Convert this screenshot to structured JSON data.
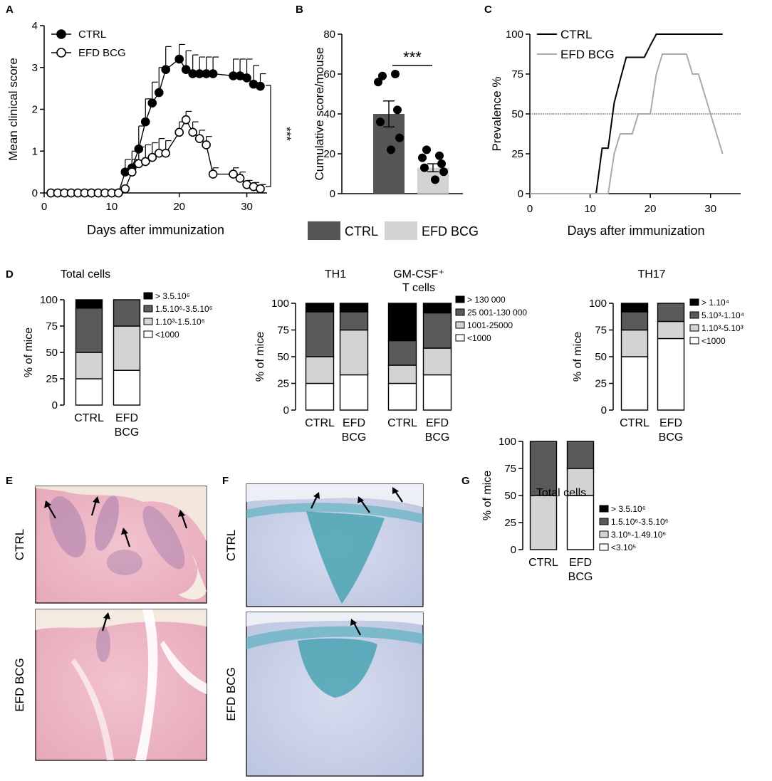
{
  "colors": {
    "dark": "#555555",
    "light": "#d3d3d3",
    "white": "#ffffff",
    "black": "#000000",
    "line_light": "#aaaaaa"
  },
  "panel_letters": [
    "A",
    "B",
    "C",
    "D",
    "E",
    "F",
    "G"
  ],
  "chart_data": [
    {
      "panel": "A",
      "type": "line",
      "xlabel": "Days after immunization",
      "ylabel": "Mean clinical score",
      "xlim": [
        0,
        33
      ],
      "ylim": [
        0,
        4
      ],
      "xticks": [
        "0",
        "10",
        "20",
        "30"
      ],
      "yticks": [
        "0",
        "1",
        "2",
        "3",
        "4"
      ],
      "legend_position": "top-left",
      "significance": "***",
      "series": [
        {
          "name": "CTRL",
          "marker": "filled-circle",
          "x": [
            1,
            2,
            3,
            4,
            5,
            6,
            7,
            8,
            9,
            10,
            11,
            12,
            13,
            14,
            15,
            16,
            17,
            18,
            20,
            21,
            22,
            23,
            24,
            25,
            28,
            29,
            30,
            31,
            32
          ],
          "y": [
            0,
            0,
            0,
            0,
            0,
            0,
            0,
            0,
            0,
            0,
            0,
            0.5,
            0.6,
            1.05,
            1.7,
            2.15,
            2.4,
            2.95,
            3.2,
            2.95,
            2.85,
            2.85,
            2.85,
            2.85,
            2.8,
            2.8,
            2.75,
            2.6,
            2.55
          ],
          "err": [
            0,
            0,
            0,
            0,
            0,
            0,
            0,
            0,
            0,
            0,
            0,
            0.3,
            0.4,
            0.55,
            0.55,
            0.5,
            0.6,
            0.55,
            0.35,
            0.45,
            0.45,
            0.4,
            0.4,
            0.4,
            0.4,
            0.4,
            0.45,
            0.45,
            0.3
          ]
        },
        {
          "name": "EFD BCG",
          "marker": "open-circle",
          "x": [
            1,
            2,
            3,
            4,
            5,
            6,
            7,
            8,
            9,
            10,
            11,
            12,
            13,
            14,
            15,
            16,
            17,
            18,
            20,
            21,
            22,
            23,
            24,
            25,
            28,
            29,
            30,
            31,
            32
          ],
          "y": [
            0,
            0,
            0,
            0,
            0,
            0,
            0,
            0,
            0,
            0,
            0,
            0.1,
            0.5,
            0.7,
            0.75,
            0.85,
            0.95,
            0.95,
            1.45,
            1.75,
            1.45,
            1.3,
            1.15,
            0.45,
            0.45,
            0.35,
            0.2,
            0.15,
            0.1
          ],
          "err": [
            0,
            0,
            0,
            0,
            0,
            0,
            0,
            0,
            0,
            0,
            0,
            0,
            0.3,
            0.4,
            0.4,
            0.35,
            0.35,
            0.3,
            0.25,
            0.2,
            0.25,
            0.2,
            0.2,
            0.15,
            0.15,
            0.15,
            0.1,
            0.1,
            0.1
          ]
        }
      ]
    },
    {
      "panel": "B",
      "type": "bar",
      "ylabel": "Cumulative score/mouse",
      "ylim": [
        0,
        80
      ],
      "yticks": [
        "0",
        "20",
        "40",
        "60",
        "80"
      ],
      "significance": "***",
      "legend": [
        "CTRL",
        "EFD BCG"
      ],
      "bars": [
        {
          "name": "CTRL",
          "value": 40,
          "sem": 6.5,
          "points": [
            59,
            60,
            56,
            42,
            36,
            28,
            22
          ]
        },
        {
          "name": "EFD BCG",
          "value": 13,
          "sem": 2,
          "points": [
            22,
            19,
            18,
            15,
            13,
            11,
            7
          ]
        }
      ]
    },
    {
      "panel": "C",
      "type": "line",
      "xlabel": "Days after immunization",
      "ylabel": "Prevalence %",
      "xlim": [
        0,
        35
      ],
      "ylim": [
        0,
        100
      ],
      "xticks": [
        "0",
        "10",
        "20",
        "30"
      ],
      "yticks": [
        "0",
        "25",
        "50",
        "75",
        "100"
      ],
      "reference_line": 50,
      "series": [
        {
          "name": "CTRL",
          "x": [
            0,
            11,
            12,
            13,
            14,
            15,
            16,
            19,
            20,
            21,
            32
          ],
          "y": [
            0,
            0,
            28.5,
            28.5,
            57,
            71.5,
            85.5,
            85.5,
            93,
            100,
            100
          ]
        },
        {
          "name": "EFD BCG",
          "x": [
            0,
            13,
            14,
            15,
            16,
            17,
            18,
            19,
            20,
            21,
            22,
            26,
            27,
            28,
            29,
            30,
            31,
            32
          ],
          "y": [
            0,
            0,
            25,
            37.5,
            37.5,
            37.5,
            50,
            50,
            50,
            75,
            87.5,
            87.5,
            75,
            75,
            62.5,
            50,
            37.5,
            25
          ]
        }
      ]
    },
    {
      "panel": "D",
      "type": "bar",
      "title": "Total cells",
      "stacked": true,
      "ylabel": "% of mice",
      "ylim": [
        0,
        100
      ],
      "yticks": [
        "0",
        "25",
        "50",
        "75",
        "100"
      ],
      "categories": [
        "CTRL",
        "EFD BCG"
      ],
      "legend": [
        "> 3.5.10⁶",
        "1.5.10⁶-3.5.10⁶",
        "1.10³-1.5.10⁶",
        "<1000"
      ],
      "series": [
        {
          "name": "<1000",
          "values": [
            25,
            33
          ]
        },
        {
          "name": "1.10³-1.5.10⁶",
          "values": [
            25,
            42
          ]
        },
        {
          "name": "1.5.10⁶-3.5.10⁶",
          "values": [
            42,
            25
          ]
        },
        {
          "name": "> 3.5.10⁶",
          "values": [
            8,
            0
          ]
        }
      ]
    },
    {
      "panel": "D",
      "type": "bar",
      "stacked": true,
      "group_titles": [
        "TH1",
        "GM-CSF⁺",
        "T cells"
      ],
      "ylabel": "% of mice",
      "ylim": [
        0,
        100
      ],
      "yticks": [
        "0",
        "25",
        "50",
        "75",
        "100"
      ],
      "categories": [
        "CTRL",
        "EFD BCG",
        "CTRL",
        "EFD BCG"
      ],
      "legend": [
        "> 130 000",
        "25 001-130 000",
        "1001-25000",
        "<1000"
      ],
      "series": [
        {
          "name": "<1000",
          "values": [
            25,
            33,
            25,
            33
          ]
        },
        {
          "name": "1001-25000",
          "values": [
            25,
            42,
            17,
            25
          ]
        },
        {
          "name": "25 001-130 000",
          "values": [
            42,
            17,
            23,
            33
          ]
        },
        {
          "name": "> 130 000",
          "values": [
            8,
            8,
            35,
            9
          ]
        }
      ]
    },
    {
      "panel": "D",
      "type": "bar",
      "title": "TH17",
      "stacked": true,
      "ylabel": "% of mice",
      "ylim": [
        0,
        100
      ],
      "yticks": [
        "0",
        "25",
        "50",
        "75",
        "100"
      ],
      "categories": [
        "CTRL",
        "EFD BCG"
      ],
      "legend": [
        "> 1.10⁴",
        "5.10³-1.10⁴",
        "1.10³-5.10³",
        "<1000"
      ],
      "series": [
        {
          "name": "<1000",
          "values": [
            50,
            67
          ]
        },
        {
          "name": "1.10³-5.10³",
          "values": [
            25,
            16
          ]
        },
        {
          "name": "5.10³-1.10⁴",
          "values": [
            17,
            17
          ]
        },
        {
          "name": "> 1.10⁴",
          "values": [
            8,
            0
          ]
        }
      ]
    },
    {
      "panel": "G",
      "type": "bar",
      "title": "Total cells",
      "stacked": true,
      "ylabel": "% of mice",
      "ylim": [
        0,
        100
      ],
      "yticks": [
        "0",
        "25",
        "50",
        "75",
        "100"
      ],
      "categories": [
        "CTRL",
        "EFD BCG"
      ],
      "legend": [
        "> 3.5.10⁶",
        "1.5.10⁶-3.5.10⁶",
        "3.10⁵-1.49.10⁶",
        "<3.10⁵"
      ],
      "series": [
        {
          "name": "<3.10⁵",
          "values": [
            0,
            50
          ]
        },
        {
          "name": "3.10⁵-1.49.10⁶",
          "values": [
            50,
            25
          ]
        },
        {
          "name": "1.5.10⁶-3.5.10⁶",
          "values": [
            50,
            25
          ]
        },
        {
          "name": "> 3.5.10⁶",
          "values": [
            0,
            0
          ]
        }
      ]
    }
  ],
  "histology": {
    "E": {
      "row_labels": [
        "CTRL",
        "EFD BCG"
      ],
      "stain_color": "#e8a6b8",
      "accent_color": "#b07aa8"
    },
    "F": {
      "row_labels": [
        "CTRL",
        "EFD BCG"
      ],
      "stain_color": "#c7cfe6",
      "accent_color": "#4aa3b4"
    }
  }
}
